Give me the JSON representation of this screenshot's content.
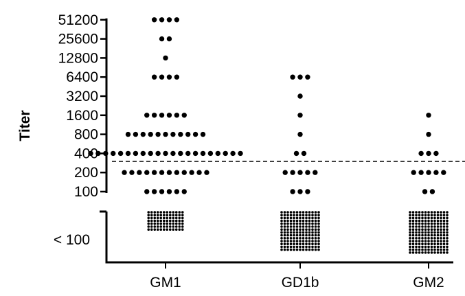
{
  "chart_data": {
    "type": "scatter",
    "ylabel": "Titer",
    "xlabel": "",
    "yscale": "log2",
    "y_ticks": [
      "100",
      "200",
      "400",
      "800",
      "1600",
      "3200",
      "6400",
      "12800",
      "25600",
      "51200"
    ],
    "below_detection_label": "< 100",
    "cutoff_value": 300,
    "categories": [
      "GM1",
      "GD1b",
      "GM2"
    ],
    "series": [
      {
        "category": "GM1",
        "points": [
          {
            "titer": 51200,
            "count": 4
          },
          {
            "titer": 25600,
            "count": 2
          },
          {
            "titer": 12800,
            "count": 1
          },
          {
            "titer": 6400,
            "count": 4
          },
          {
            "titer": 1600,
            "count": 6
          },
          {
            "titer": 800,
            "count": 11
          },
          {
            "titer": 400,
            "count": 21
          },
          {
            "titer": 200,
            "count": 12
          },
          {
            "titer": 100,
            "count": 6
          }
        ],
        "below_100": {
          "columns": 12,
          "rows": 7
        }
      },
      {
        "category": "GD1b",
        "points": [
          {
            "titer": 6400,
            "count": 3
          },
          {
            "titer": 3200,
            "count": 1
          },
          {
            "titer": 1600,
            "count": 1
          },
          {
            "titer": 800,
            "count": 1
          },
          {
            "titer": 400,
            "count": 2
          },
          {
            "titer": 200,
            "count": 5
          },
          {
            "titer": 100,
            "count": 3
          }
        ],
        "below_100": {
          "columns": 13,
          "rows": 14
        }
      },
      {
        "category": "GM2",
        "points": [
          {
            "titer": 1600,
            "count": 1
          },
          {
            "titer": 800,
            "count": 1
          },
          {
            "titer": 400,
            "count": 3
          },
          {
            "titer": 200,
            "count": 5
          },
          {
            "titer": 100,
            "count": 2
          }
        ],
        "below_100": {
          "columns": 13,
          "rows": 15
        }
      }
    ],
    "grid": false,
    "legend": "none"
  }
}
